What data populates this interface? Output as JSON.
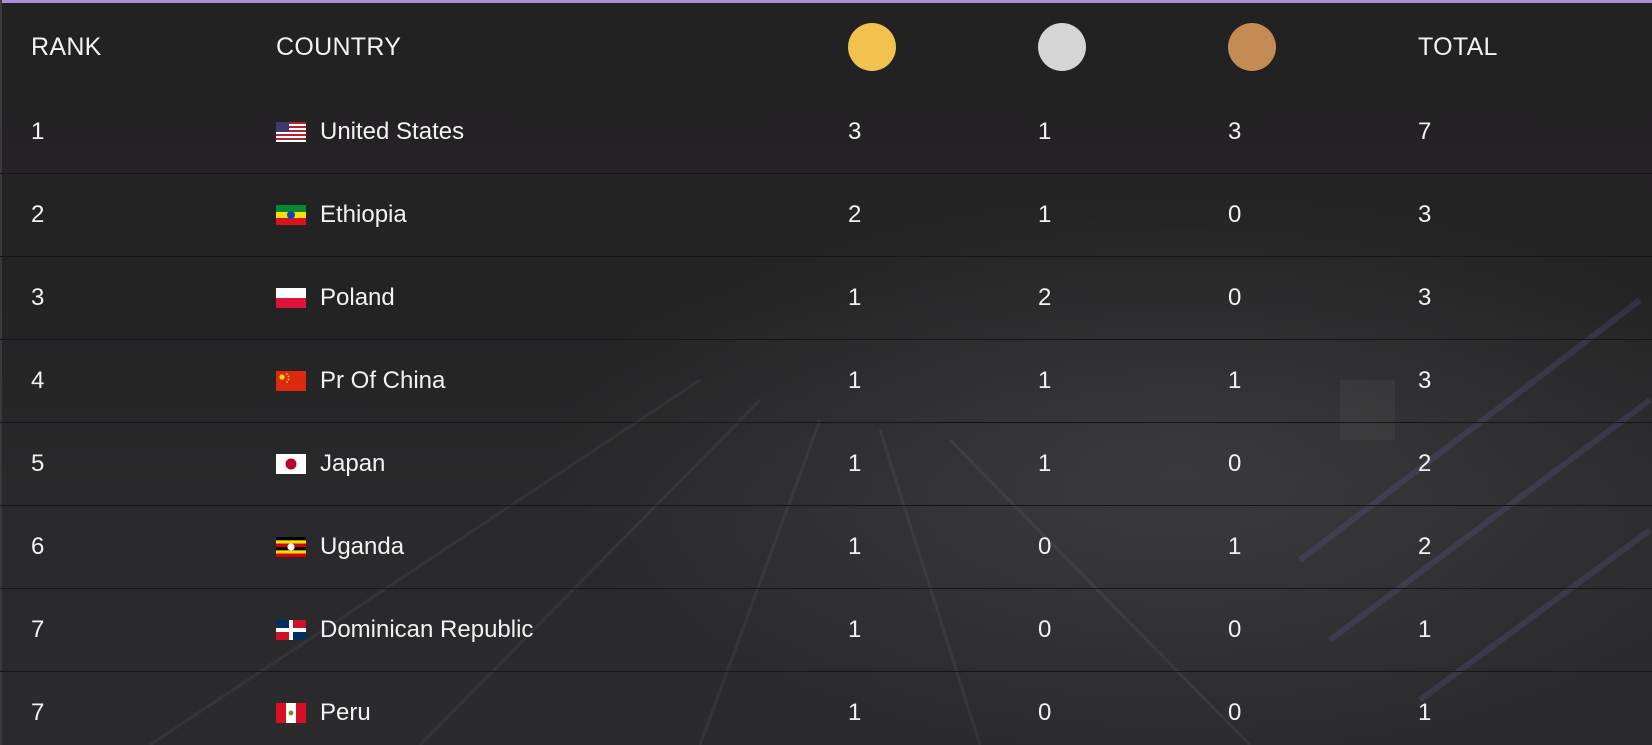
{
  "header": {
    "rank": "RANK",
    "country": "COUNTRY",
    "total": "TOTAL"
  },
  "colors": {
    "gold": "#f1c24e",
    "silver": "#d5d5d5",
    "bronze": "#c58b55",
    "accent_top": "#a98fd6"
  },
  "rows": [
    {
      "rank": "1",
      "country": "United States",
      "flag": "us-flag-icon",
      "gold": "3",
      "silver": "1",
      "bronze": "3",
      "total": "7"
    },
    {
      "rank": "2",
      "country": "Ethiopia",
      "flag": "ethiopia-flag-icon",
      "gold": "2",
      "silver": "1",
      "bronze": "0",
      "total": "3"
    },
    {
      "rank": "3",
      "country": "Poland",
      "flag": "poland-flag-icon",
      "gold": "1",
      "silver": "2",
      "bronze": "0",
      "total": "3"
    },
    {
      "rank": "4",
      "country": "Pr Of China",
      "flag": "china-flag-icon",
      "gold": "1",
      "silver": "1",
      "bronze": "1",
      "total": "3"
    },
    {
      "rank": "5",
      "country": "Japan",
      "flag": "japan-flag-icon",
      "gold": "1",
      "silver": "1",
      "bronze": "0",
      "total": "2"
    },
    {
      "rank": "6",
      "country": "Uganda",
      "flag": "uganda-flag-icon",
      "gold": "1",
      "silver": "0",
      "bronze": "1",
      "total": "2"
    },
    {
      "rank": "7",
      "country": "Dominican Republic",
      "flag": "dominican-republic-flag-icon",
      "gold": "1",
      "silver": "0",
      "bronze": "0",
      "total": "1"
    },
    {
      "rank": "7",
      "country": "Peru",
      "flag": "peru-flag-icon",
      "gold": "1",
      "silver": "0",
      "bronze": "0",
      "total": "1"
    }
  ]
}
